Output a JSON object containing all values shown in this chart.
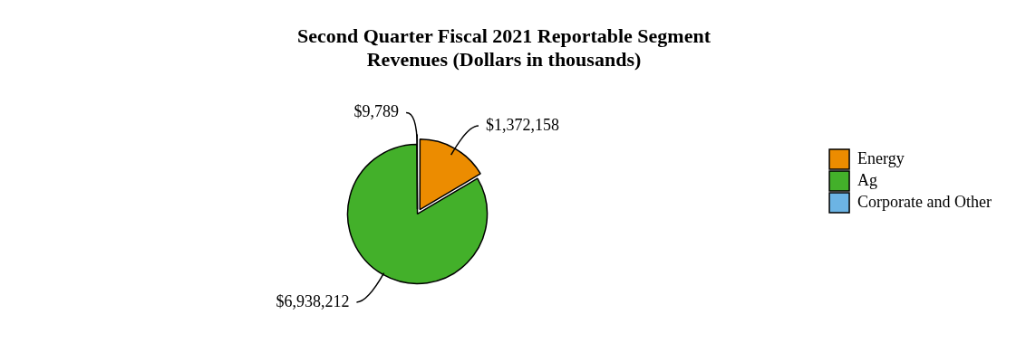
{
  "chart_data": {
    "type": "pie",
    "title": "Second Quarter Fiscal 2021 Reportable Segment\nRevenues (Dollars in thousands)",
    "categories": [
      "Energy",
      "Ag",
      "Corporate and Other"
    ],
    "values": [
      1372158,
      6938212,
      9789
    ],
    "colors": [
      "#ec8c00",
      "#43b02a",
      "#6cb4e4"
    ],
    "value_labels": [
      "$1,372,158",
      "$6,938,212",
      "$9,789"
    ],
    "legend": "right"
  }
}
